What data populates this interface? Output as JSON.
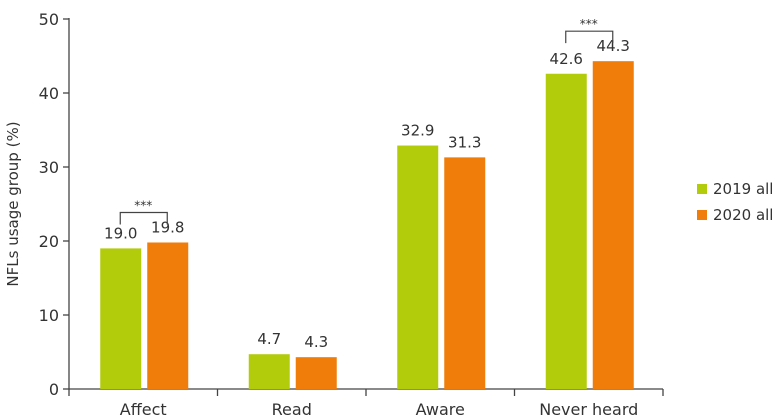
{
  "chart_data": {
    "type": "bar",
    "categories": [
      "Affect",
      "Read",
      "Aware",
      "Never heard"
    ],
    "series": [
      {
        "name": "2019 all",
        "values": [
          19.0,
          4.7,
          32.9,
          42.6
        ],
        "color": "#b2cb0a"
      },
      {
        "name": "2020 all",
        "values": [
          19.8,
          4.3,
          31.3,
          44.3
        ],
        "color": "#f07d0a"
      }
    ],
    "value_labels": [
      [
        "19.0",
        "4.7",
        "32.9",
        "42.6"
      ],
      [
        "19.8",
        "4.3",
        "31.3",
        "44.3"
      ]
    ],
    "significance": [
      {
        "category": "Affect",
        "label": "***"
      },
      {
        "category": "Never heard",
        "label": "***"
      }
    ],
    "xlabel": "",
    "ylabel": "NFLs usage group (%)",
    "ylim": [
      0,
      50
    ],
    "yticks": [
      "0",
      "10",
      "20",
      "30",
      "40",
      "50"
    ],
    "grid": false,
    "legend": "right"
  }
}
